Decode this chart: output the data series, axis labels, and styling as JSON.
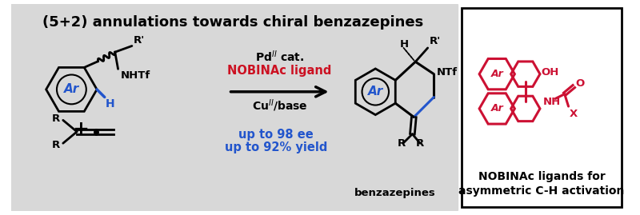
{
  "title": "(5+2) annulations towards chiral benzazepines",
  "title_fontsize": 13,
  "bg_left_color": "#d8d8d8",
  "bg_right_color": "#ffffff",
  "right_box_color": "#000000",
  "mol_color": "#000000",
  "ar_color": "#2255cc",
  "red_color": "#cc1122",
  "blue_color": "#2255cc",
  "right_mol_color": "#cc1133",
  "text_ee": "up to 98 ee",
  "text_yield": "up to 92% yield",
  "text_product": "benzazepines",
  "text_right_caption": "NOBINAc ligands for\nasymmetric C-H activation",
  "figsize": [
    8.0,
    2.69
  ],
  "dpi": 100
}
